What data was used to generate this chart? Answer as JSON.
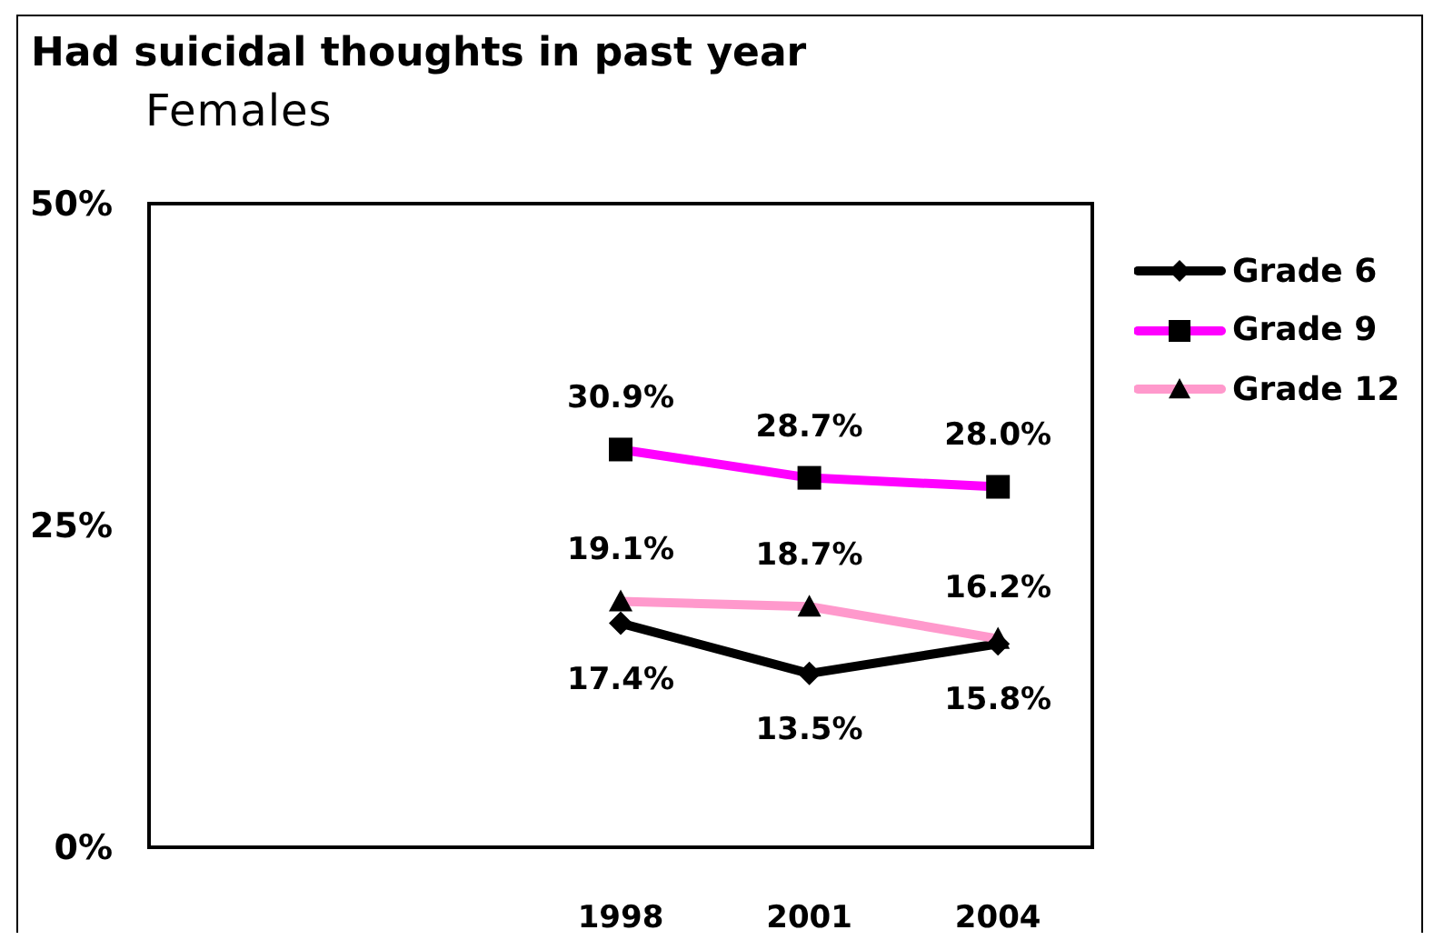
{
  "chart_data": {
    "type": "line",
    "title": "Had suicidal thoughts in past year",
    "subtitle": "Females",
    "categories": [
      null,
      null,
      "1998",
      "2001",
      "2004"
    ],
    "series": [
      {
        "name": "Grade 6",
        "color": "#000000",
        "marker": "diamond",
        "values": [
          null,
          null,
          17.4,
          13.5,
          15.8
        ],
        "value_labels": [
          null,
          null,
          "17.4%",
          "13.5%",
          "15.8%"
        ]
      },
      {
        "name": "Grade 9",
        "color": "#ff00ff",
        "marker": "square",
        "values": [
          null,
          null,
          30.9,
          28.7,
          28.0
        ],
        "value_labels": [
          null,
          null,
          "30.9%",
          "28.7%",
          "28.0%"
        ]
      },
      {
        "name": "Grade 12",
        "color": "#ff99cc",
        "marker": "triangle",
        "values": [
          null,
          null,
          19.1,
          18.7,
          16.2
        ],
        "value_labels": [
          null,
          null,
          "19.1%",
          "18.7%",
          "16.2%"
        ]
      }
    ],
    "ylim": [
      0,
      50
    ],
    "yticks": [
      {
        "value": 0,
        "label": "0%"
      },
      {
        "value": 25,
        "label": "25%"
      },
      {
        "value": 50,
        "label": "50%"
      }
    ],
    "legend": "right"
  }
}
